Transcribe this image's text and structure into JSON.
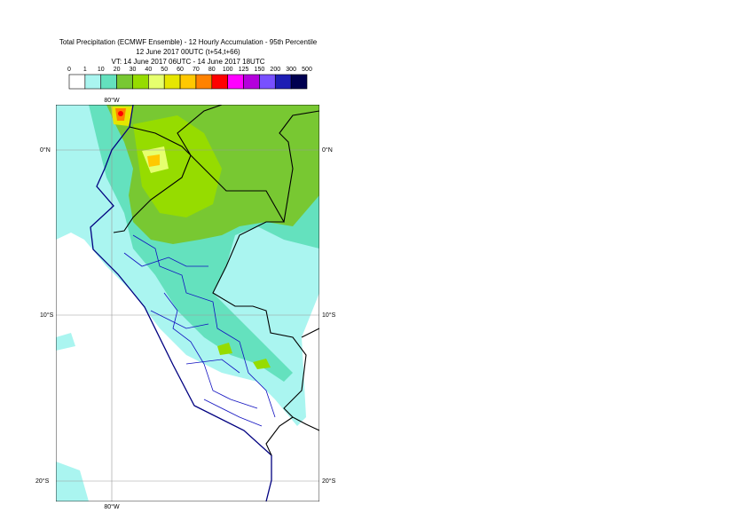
{
  "header": {
    "title": "Total Precipitation (ECMWF Ensemble) - 12 Hourly Accumulation - 95th Percentile",
    "subtitle": "12 June 2017 00UTC (t+54,t+66)",
    "valid_time": "VT: 14 June 2017 06UTC - 14 June 2017 18UTC"
  },
  "legend": {
    "labels": [
      "0",
      "1",
      "10",
      "20",
      "30",
      "40",
      "50",
      "60",
      "70",
      "80",
      "100",
      "125",
      "150",
      "200",
      "300",
      "500"
    ],
    "colors": [
      "#ffffff",
      "#aaf5f0",
      "#64e1be",
      "#78c832",
      "#96dc00",
      "#e6ff6e",
      "#e6e600",
      "#ffc800",
      "#ff8200",
      "#ff0000",
      "#ff00ff",
      "#b400dc",
      "#7850ff",
      "#1e1eb4",
      "#000050"
    ]
  },
  "map": {
    "lat_labels": [
      "0°N",
      "10°S",
      "20°S"
    ],
    "lon_label": "80°W"
  }
}
